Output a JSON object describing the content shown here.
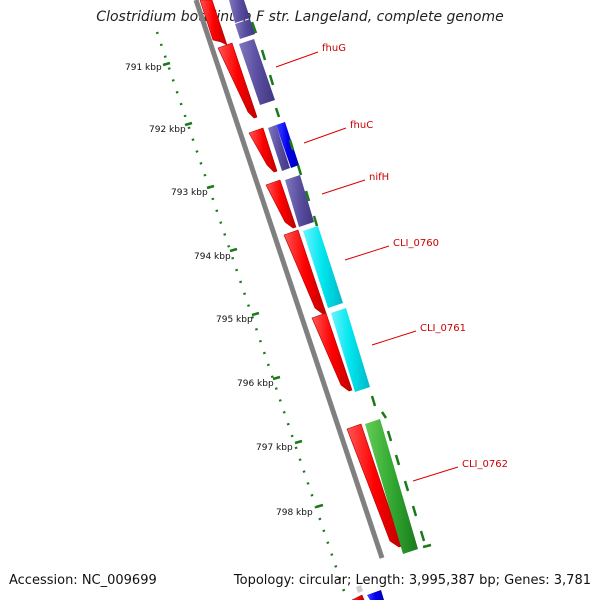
{
  "title": "Clostridium botulinum F str. Langeland, complete genome",
  "footer": {
    "accession": "Accession: NC_009699",
    "summary": "Topology: circular; Length: 3,995,387 bp; Genes: 3,781"
  },
  "scale_labels": [
    "791 kbp",
    "792 kbp",
    "793 kbp",
    "794 kbp",
    "795 kbp",
    "796 kbp",
    "797 kbp",
    "798 kbp"
  ],
  "genes": [
    {
      "label": "fhuG",
      "cds_color": "#ff0000",
      "feature_color": "#5a4fa0"
    },
    {
      "label": "fhuC",
      "cds_color": "#ff0000",
      "feature_color": "#0000ee"
    },
    {
      "label": "nifH",
      "cds_color": "#ff0000",
      "feature_color": "#5a4fa0"
    },
    {
      "label": "CLI_0760",
      "cds_color": "#ff0000",
      "feature_color": "#00e5ee"
    },
    {
      "label": "CLI_0761",
      "cds_color": "#ff0000",
      "feature_color": "#00e5ee"
    },
    {
      "label": "CLI_0762",
      "cds_color": "#ff0000",
      "feature_color": "#22aa22"
    }
  ],
  "colors": {
    "backbone": "#808080",
    "tick_dots": "#1a7a1a",
    "label_text": "#cc0000",
    "leader_line": "#dd0000"
  }
}
